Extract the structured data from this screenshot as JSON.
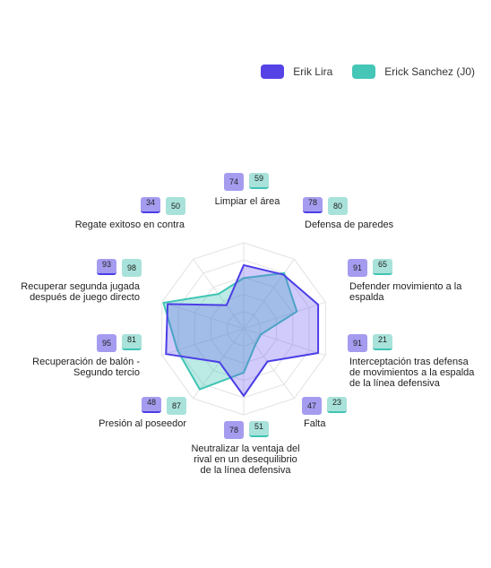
{
  "legend": [
    {
      "name": "Erik Lira",
      "color": "#5643e6"
    },
    {
      "name": "Erick Sanchez (J0)",
      "color": "#45c6b6"
    }
  ],
  "chart_data": {
    "type": "radar",
    "range": [
      0,
      100
    ],
    "rings": 5,
    "grid": true,
    "legend_placement": "top-right",
    "categories": [
      "Limpiar el área",
      "Defensa de paredes",
      "Defender movimiento a la espalda",
      "Interceptación tras defensa de movimientos a la espalda de la línea defensiva",
      "Falta",
      "Neutralizar la ventaja del rival en un desequilibrio de la línea defensiva",
      "Presión al poseedor",
      "Recuperación de balón - Segundo tercio",
      "Recuperar segunda jugada después de juego directo",
      "Regate exitoso en contra"
    ],
    "series": [
      {
        "name": "Erik Lira",
        "values": [
          74,
          78,
          91,
          91,
          47,
          78,
          48,
          95,
          93,
          34
        ]
      },
      {
        "name": "Erick Sanchez (J0)",
        "values": [
          59,
          80,
          65,
          21,
          23,
          51,
          87,
          81,
          98,
          50
        ]
      }
    ]
  }
}
